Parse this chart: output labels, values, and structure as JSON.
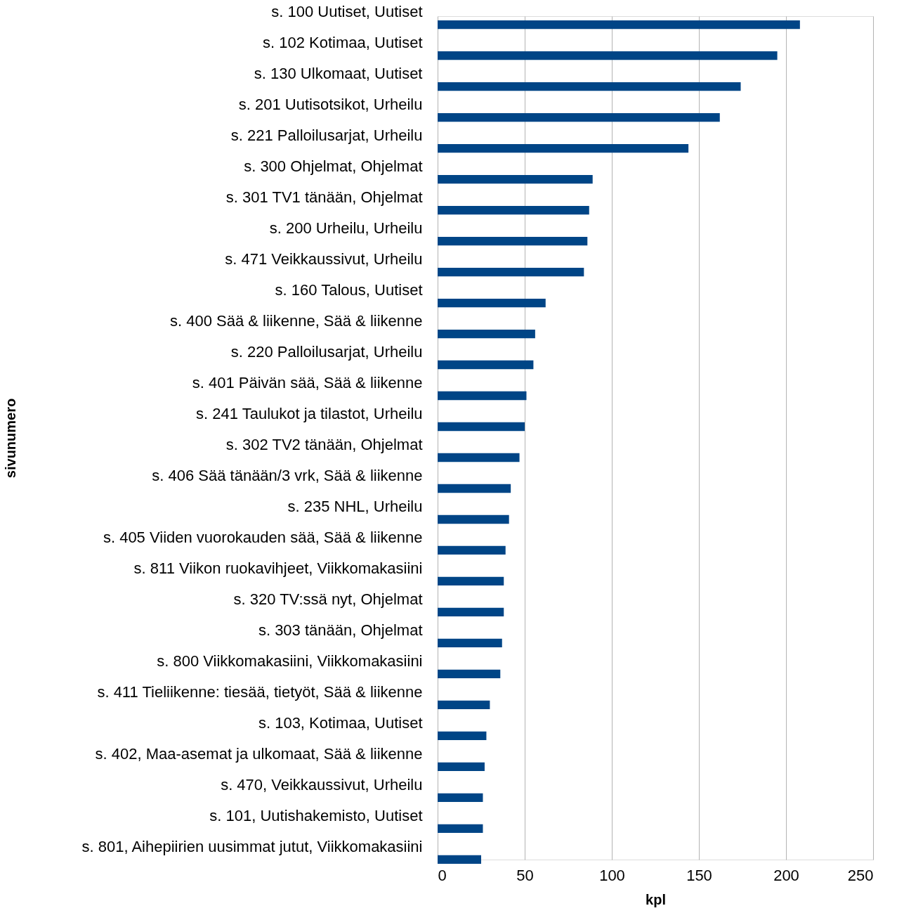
{
  "chart_data": {
    "type": "bar",
    "orientation": "horizontal",
    "xlabel": "kpl",
    "ylabel": "sivunumero",
    "categories": [
      "s. 100 Uutiset, Uutiset",
      "s. 102 Kotimaa, Uutiset",
      "s. 130 Ulkomaat, Uutiset",
      "s. 201 Uutisotsikot, Urheilu",
      "s. 221 Palloilusarjat, Urheilu",
      "s. 300 Ohjelmat, Ohjelmat",
      "s. 301 TV1 tänään, Ohjelmat",
      "s. 200 Urheilu, Urheilu",
      "s. 471 Veikkaussivut, Urheilu",
      "s. 160 Talous, Uutiset",
      "s. 400 Sää & liikenne, Sää & liikenne",
      "s. 220 Palloilusarjat, Urheilu",
      "s. 401 Päivän sää, Sää & liikenne",
      "s. 241 Taulukot ja tilastot, Urheilu",
      "s. 302 TV2 tänään, Ohjelmat",
      "s. 406 Sää tänään/3 vrk, Sää & liikenne",
      "s. 235 NHL, Urheilu",
      "s. 405 Viiden vuorokauden sää, Sää & liikenne",
      "s. 811 Viikon ruokavihjeet, Viikkomakasiini",
      "s. 320 TV:ssä nyt, Ohjelmat",
      "s. 303 tänään, Ohjelmat",
      "s. 800 Viikkomakasiini, Viikkomakasiini",
      "s. 411 Tieliikenne: tiesää, tietyöt, Sää & liikenne",
      "s. 103, Kotimaa, Uutiset",
      "s. 402, Maa-asemat ja ulkomaat, Sää & liikenne",
      "s. 470, Veikkaussivut, Urheilu",
      "s. 101, Uutishakemisto, Uutiset",
      "s. 801, Aihepiirien uusimmat jutut, Viikkomakasiini"
    ],
    "values": [
      208,
      195,
      174,
      162,
      144,
      89,
      87,
      86,
      84,
      62,
      56,
      55,
      51,
      50,
      47,
      42,
      41,
      39,
      38,
      38,
      37,
      36,
      30,
      28,
      27,
      26,
      26,
      25
    ],
    "color": "#004586",
    "xlim": [
      0,
      250
    ],
    "xticks": [
      0,
      50,
      100,
      150,
      200,
      250
    ],
    "grid": "x"
  }
}
